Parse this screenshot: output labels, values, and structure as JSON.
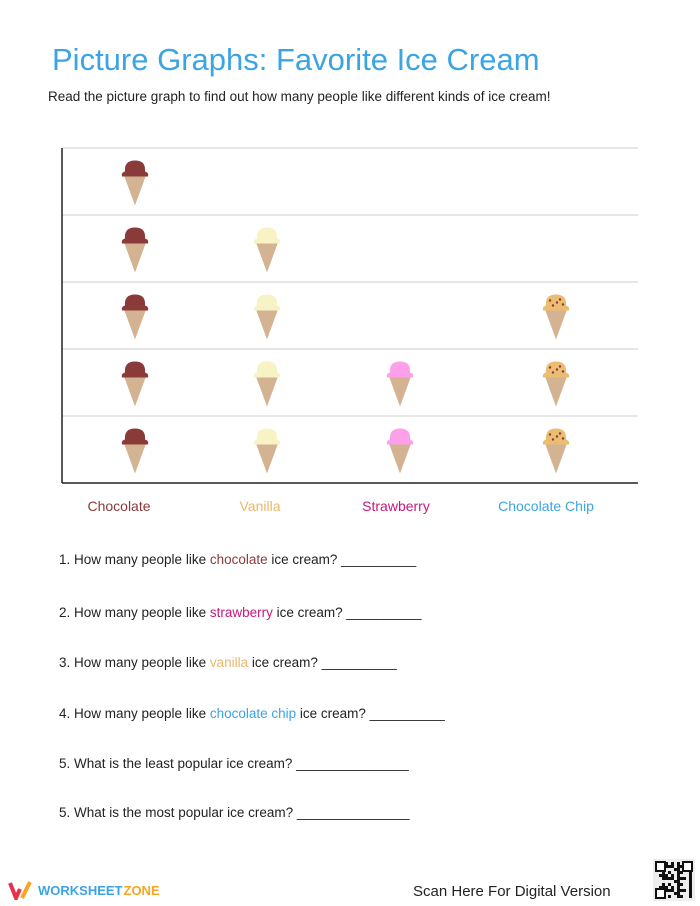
{
  "header": {
    "title": "Picture Graphs: Favorite Ice Cream",
    "subtitle": "Read the picture graph to find out how many people like different kinds of ice cream!"
  },
  "chart_data": {
    "type": "pictograph",
    "categories": [
      "Chocolate",
      "Vanilla",
      "Strawberry",
      "Chocolate Chip"
    ],
    "values": [
      5,
      4,
      2,
      3
    ],
    "category_colors": [
      "#8b3a3a",
      "#e8b86a",
      "#c8177d",
      "#3ba4e3"
    ],
    "scoop_colors": [
      "#8b3a3a",
      "#f7f3c4",
      "#fca0ea",
      "#ebbd72"
    ],
    "cone_color": "#d4b393",
    "ylim": [
      0,
      5
    ],
    "grid": true
  },
  "questions": [
    {
      "pre": "1. How many people like ",
      "kw": "chocolate",
      "kw_color": "#8b3a3a",
      "post": " ice cream? __________"
    },
    {
      "pre": "2. How many people like ",
      "kw": "strawberry",
      "kw_color": "#c8177d",
      "post": " ice cream? __________"
    },
    {
      "pre": "3. How many people like ",
      "kw": "vanilla",
      "kw_color": "#e8b86a",
      "post": " ice cream? __________"
    },
    {
      "pre": "4. How many people like ",
      "kw": "chocolate chip",
      "kw_color": "#3ba4e3",
      "post": " ice cream? __________"
    },
    {
      "pre": "5. What is the least popular ice cream? _______________",
      "kw": "",
      "post": ""
    },
    {
      "pre": "5. What is the most popular ice cream? _______________",
      "kw": "",
      "post": ""
    }
  ],
  "footer": {
    "brand_a": "WORKSHEET",
    "brand_b": "ZONE",
    "scan": "Scan Here For Digital Version"
  }
}
